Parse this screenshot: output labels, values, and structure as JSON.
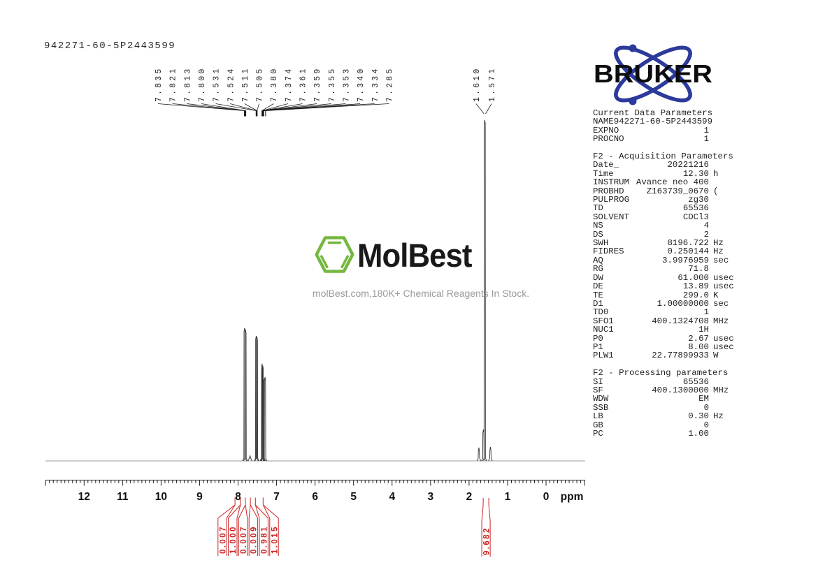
{
  "title": "942271-60-5P2443599",
  "logos": {
    "bruker": "BRUKER",
    "molbest": "MolBest",
    "tagline": "molBest.com,180K+ Chemical Reagents In Stock."
  },
  "colors": {
    "accent_red": "#cc2222",
    "bruker_blue": "#2b3a9b",
    "molbest_green": "#74b83d",
    "trace": "#2f2f2f"
  },
  "params": {
    "sections": [
      {
        "header": "Current Data Parameters",
        "rows": [
          [
            "NAME",
            "942271-60-5P2443599",
            ""
          ],
          [
            "EXPNO",
            "1",
            ""
          ],
          [
            "PROCNO",
            "1",
            ""
          ]
        ]
      },
      {
        "header": "F2 - Acquisition Parameters",
        "rows": [
          [
            "Date_",
            "20221216",
            ""
          ],
          [
            "Time",
            "12.30",
            "h"
          ],
          [
            "INSTRUM",
            "Avance neo 400",
            ""
          ],
          [
            "PROBHD",
            "Z163739_0670",
            "("
          ],
          [
            "PULPROG",
            "zg30",
            ""
          ],
          [
            "TD",
            "65536",
            ""
          ],
          [
            "SOLVENT",
            "CDCl3",
            ""
          ],
          [
            "NS",
            "4",
            ""
          ],
          [
            "DS",
            "2",
            ""
          ],
          [
            "SWH",
            "8196.722",
            "Hz"
          ],
          [
            "FIDRES",
            "0.250144",
            "Hz"
          ],
          [
            "AQ",
            "3.9976959",
            "sec"
          ],
          [
            "RG",
            "71.8",
            ""
          ],
          [
            "DW",
            "61.000",
            "usec"
          ],
          [
            "DE",
            "13.89",
            "usec"
          ],
          [
            "TE",
            "299.0",
            "K"
          ],
          [
            "D1",
            "1.00000000",
            "sec"
          ],
          [
            "TD0",
            "1",
            ""
          ],
          [
            "SFO1",
            "400.1324708",
            "MHz"
          ],
          [
            "NUC1",
            "1H",
            ""
          ],
          [
            "P0",
            "2.67",
            "usec"
          ],
          [
            "P1",
            "8.00",
            "usec"
          ],
          [
            "PLW1",
            "22.77899933",
            "W"
          ]
        ]
      },
      {
        "header": "F2 - Processing parameters",
        "rows": [
          [
            "SI",
            "65536",
            ""
          ],
          [
            "SF",
            "400.1300000",
            "MHz"
          ],
          [
            "WDW",
            "EM",
            ""
          ],
          [
            "SSB",
            "0",
            ""
          ],
          [
            "LB",
            "0.30",
            "Hz"
          ],
          [
            "GB",
            "0",
            ""
          ],
          [
            "PC",
            "1.00",
            ""
          ]
        ]
      }
    ]
  },
  "chart_data": {
    "type": "line",
    "title": "1H NMR spectrum 942271-60-5P2443599",
    "xlabel": "ppm",
    "axis": {
      "min": -1.0,
      "max": 13.0,
      "ticks": [
        12,
        11,
        10,
        9,
        8,
        7,
        6,
        5,
        4,
        3,
        2,
        1,
        0
      ],
      "minor_step": 0.1,
      "unit_label": "ppm",
      "grid": false
    },
    "peak_labels": {
      "aromatic": [
        "7.835",
        "7.821",
        "7.813",
        "7.800",
        "7.531",
        "7.524",
        "7.511",
        "7.505",
        "7.380",
        "7.374",
        "7.361",
        "7.359",
        "7.355",
        "7.353",
        "7.340",
        "7.334",
        "7.285"
      ],
      "aliphatic": [
        "1.610",
        "1.571"
      ]
    },
    "spikes": [
      [
        7.831,
        0.39
      ],
      [
        7.806,
        0.385
      ],
      [
        7.529,
        0.367
      ],
      [
        7.509,
        0.363
      ],
      [
        7.69,
        0.016
      ],
      [
        7.377,
        0.285
      ],
      [
        7.358,
        0.279
      ],
      [
        7.337,
        0.242
      ],
      [
        7.3,
        0.246
      ],
      [
        1.745,
        0.039
      ],
      [
        1.627,
        0.092
      ],
      [
        1.592,
        1.0
      ],
      [
        1.445,
        0.041
      ]
    ],
    "integrals": {
      "aromatic": [
        [
          "0.007",
          8.08
        ],
        [
          "1.000",
          7.94
        ],
        [
          "0.007",
          7.81
        ],
        [
          "0.009",
          7.68
        ],
        [
          "0.981",
          7.55
        ],
        [
          "1.015",
          7.35
        ]
      ],
      "aliphatic": [
        [
          "9.682",
          1.56
        ]
      ]
    }
  }
}
